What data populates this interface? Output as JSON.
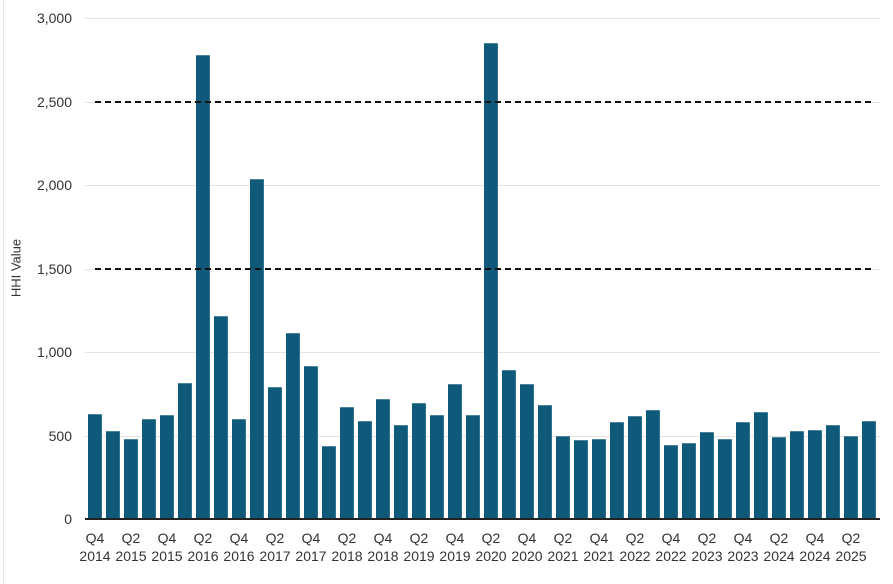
{
  "chart_data": {
    "type": "bar",
    "title": "",
    "xlabel": "",
    "ylabel": "HHI Value",
    "ylim": [
      0,
      3000
    ],
    "yticks": [
      0,
      500,
      1000,
      1500,
      2000,
      2500,
      3000
    ],
    "ytick_labels": [
      "0",
      "500",
      "1,000",
      "1,500",
      "2,000",
      "2,500",
      "3,000"
    ],
    "grid": true,
    "legend": null,
    "bar_color": "#0f5a7a",
    "reference_lines": [
      {
        "value": 1500,
        "style": "dashed",
        "color": "#111111"
      },
      {
        "value": 2500,
        "style": "dashed",
        "color": "#111111"
      }
    ],
    "categories": [
      "Q4 2014",
      "Q1 2015",
      "Q2 2015",
      "Q3 2015",
      "Q4 2015",
      "Q1 2016",
      "Q2 2016",
      "Q3 2016",
      "Q4 2016",
      "Q1 2017",
      "Q2 2017",
      "Q3 2017",
      "Q4 2017",
      "Q1 2018",
      "Q2 2018",
      "Q3 2018",
      "Q4 2018",
      "Q1 2019",
      "Q2 2019",
      "Q3 2019",
      "Q4 2019",
      "Q1 2020",
      "Q2 2020",
      "Q3 2020",
      "Q4 2020",
      "Q1 2021",
      "Q2 2021",
      "Q3 2021",
      "Q4 2021",
      "Q1 2022",
      "Q2 2022",
      "Q3 2022",
      "Q4 2022",
      "Q1 2023",
      "Q2 2023",
      "Q3 2023",
      "Q4 2023",
      "Q1 2024",
      "Q2 2024",
      "Q3 2024",
      "Q4 2024",
      "Q1 2025",
      "Q2 2025",
      "Q3 2025"
    ],
    "values": [
      627,
      526,
      478,
      596,
      620,
      817,
      2779,
      1213,
      598,
      2036,
      793,
      1116,
      919,
      436,
      668,
      584,
      721,
      560,
      697,
      620,
      811,
      620,
      2853,
      895,
      811,
      680,
      500,
      472,
      482,
      580,
      614,
      650,
      446,
      458,
      518,
      482,
      578,
      638,
      494,
      525,
      532,
      562,
      496,
      586
    ],
    "xtick_labels": [
      {
        "q": "Q4",
        "year": "2014",
        "index": 0
      },
      {
        "q": "Q2",
        "year": "2015",
        "index": 2
      },
      {
        "q": "Q4",
        "year": "2015",
        "index": 4
      },
      {
        "q": "Q2",
        "year": "2016",
        "index": 6
      },
      {
        "q": "Q4",
        "year": "2016",
        "index": 8
      },
      {
        "q": "Q2",
        "year": "2017",
        "index": 10
      },
      {
        "q": "Q4",
        "year": "2017",
        "index": 12
      },
      {
        "q": "Q2",
        "year": "2018",
        "index": 14
      },
      {
        "q": "Q4",
        "year": "2018",
        "index": 16
      },
      {
        "q": "Q2",
        "year": "2019",
        "index": 18
      },
      {
        "q": "Q4",
        "year": "2019",
        "index": 20
      },
      {
        "q": "Q2",
        "year": "2020",
        "index": 22
      },
      {
        "q": "Q4",
        "year": "2020",
        "index": 24
      },
      {
        "q": "Q2",
        "year": "2021",
        "index": 26
      },
      {
        "q": "Q4",
        "year": "2021",
        "index": 28
      },
      {
        "q": "Q2",
        "year": "2022",
        "index": 30
      },
      {
        "q": "Q4",
        "year": "2022",
        "index": 32
      },
      {
        "q": "Q2",
        "year": "2023",
        "index": 34
      },
      {
        "q": "Q4",
        "year": "2023",
        "index": 36
      },
      {
        "q": "Q2",
        "year": "2024",
        "index": 38
      },
      {
        "q": "Q4",
        "year": "2024",
        "index": 40
      },
      {
        "q": "Q2",
        "year": "2025",
        "index": 42
      }
    ]
  }
}
